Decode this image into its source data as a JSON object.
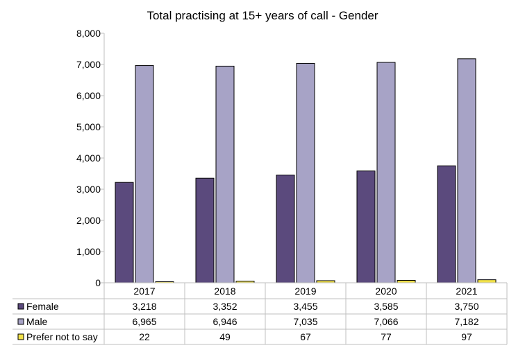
{
  "chart_data": {
    "type": "bar",
    "title": "Total practising at 15+ years of call - Gender",
    "xlabel": "",
    "ylabel": "",
    "ylim": [
      0,
      8000
    ],
    "yticks": [
      "0",
      "1,000",
      "2,000",
      "3,000",
      "4,000",
      "5,000",
      "6,000",
      "7,000",
      "8,000"
    ],
    "ytick_values": [
      0,
      1000,
      2000,
      3000,
      4000,
      5000,
      6000,
      7000,
      8000
    ],
    "grid": false,
    "legend": "data-table-left",
    "categories": [
      "2017",
      "2018",
      "2019",
      "2020",
      "2021"
    ],
    "series": [
      {
        "name": "Female",
        "color": "#5b4a7d",
        "values": [
          3218,
          3352,
          3455,
          3585,
          3750
        ],
        "labels": [
          "3,218",
          "3,352",
          "3,455",
          "3,585",
          "3,750"
        ]
      },
      {
        "name": "Male",
        "color": "#a7a3c6",
        "values": [
          6965,
          6946,
          7035,
          7066,
          7182
        ],
        "labels": [
          "6,965",
          "6,946",
          "7,035",
          "7,066",
          "7,182"
        ]
      },
      {
        "name": "Prefer not to say",
        "color": "#f2e24a",
        "values": [
          22,
          49,
          67,
          77,
          97
        ],
        "labels": [
          "22",
          "49",
          "67",
          "77",
          "97"
        ]
      }
    ]
  }
}
